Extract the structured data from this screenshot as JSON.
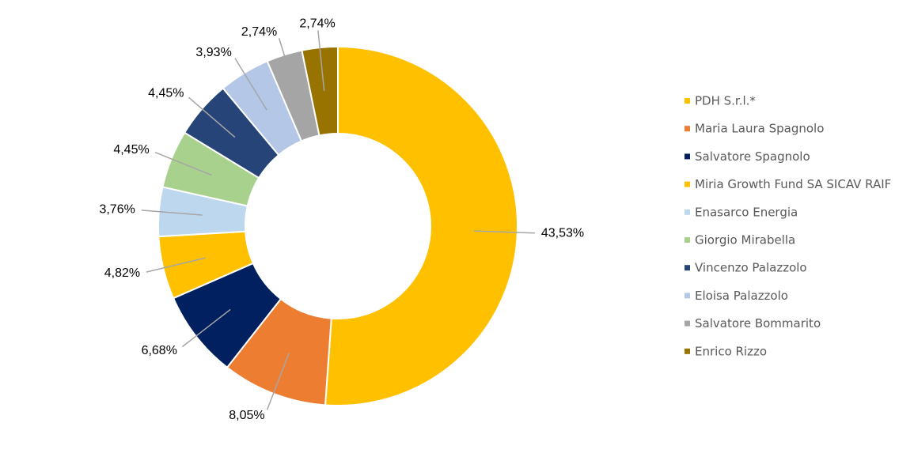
{
  "chart_data": {
    "type": "donut",
    "categories": [
      "PDH S.r.l.*",
      "Maria Laura Spagnolo",
      "Salvatore Spagnolo",
      "Miria Growth Fund SA SICAV RAIF",
      "Enasarco Energia",
      "Giorgio Mirabella",
      "Vincenzo Palazzolo",
      "Eloisa Palazzolo",
      "Salvatore Bommarito",
      "Enrico Rizzo"
    ],
    "values": [
      43.53,
      8.05,
      6.68,
      4.82,
      3.76,
      4.45,
      4.45,
      3.93,
      2.74,
      2.74
    ],
    "value_labels": [
      "43,53%",
      "8,05%",
      "6,68%",
      "4,82%",
      "3,76%",
      "4,45%",
      "4,45%",
      "3,93%",
      "2,74%",
      "2,74%"
    ],
    "colors": [
      "#FFC000",
      "#ED7D31",
      "#002060",
      "#FFC000",
      "#BDD7EE",
      "#A9D18E",
      "#264478",
      "#B4C7E7",
      "#A5A5A5",
      "#997300"
    ],
    "legend": "right"
  }
}
